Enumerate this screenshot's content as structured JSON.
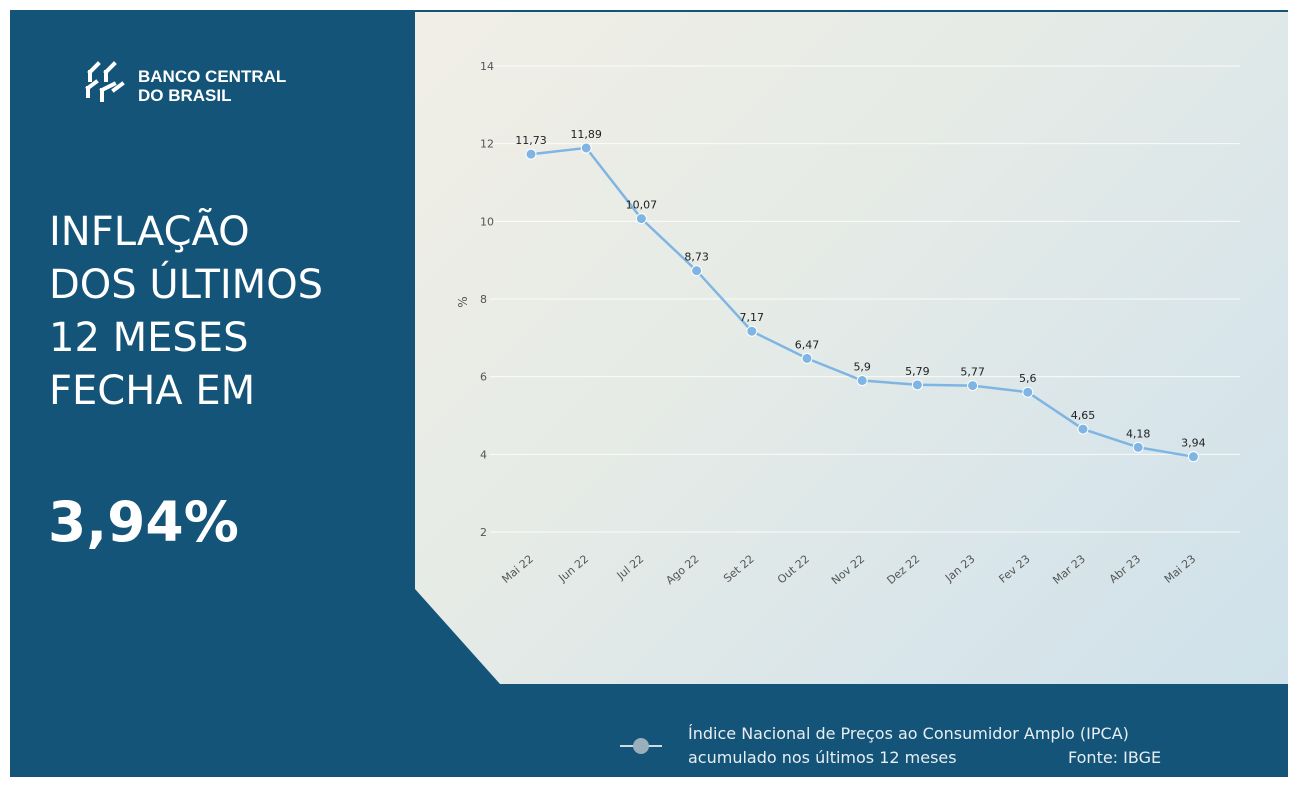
{
  "logo": {
    "line1": "BANCO CENTRAL",
    "line2": "DO BRASIL"
  },
  "headline": {
    "lines": [
      "INFLAÇÃO",
      "DOS ÚLTIMOS",
      "12 MESES",
      "FECHA EM"
    ],
    "value": "3,94%"
  },
  "legend": {
    "line1": "Índice Nacional de Preços ao Consumidor Amplo (IPCA)",
    "line2": "acumulado nos últimos 12 meses",
    "source": "Fonte: IBGE"
  },
  "colors": {
    "background": "#135478",
    "line": "#7fb5e3",
    "panel": "#e8ece6"
  },
  "chart_data": {
    "type": "line",
    "ylabel": "%",
    "ylim": [
      2,
      14
    ],
    "yticks": [
      2,
      4,
      6,
      8,
      10,
      12,
      14
    ],
    "grid": true,
    "categories": [
      "Mai 22",
      "Jun 22",
      "Jul 22",
      "Ago 22",
      "Set 22",
      "Out 22",
      "Nov 22",
      "Dez 22",
      "Jan 23",
      "Fev 23",
      "Mar 23",
      "Abr 23",
      "Mai 23"
    ],
    "values": [
      11.73,
      11.89,
      10.07,
      8.73,
      7.17,
      6.47,
      5.9,
      5.79,
      5.77,
      5.6,
      4.65,
      4.18,
      3.94
    ],
    "data_labels": [
      "11,73",
      "11,89",
      "10,07",
      "8,73",
      "7,17",
      "6,47",
      "5,9",
      "5,79",
      "5,77",
      "5,6",
      "4,65",
      "4,18",
      "3,94"
    ],
    "legend_position": "bottom-right"
  }
}
